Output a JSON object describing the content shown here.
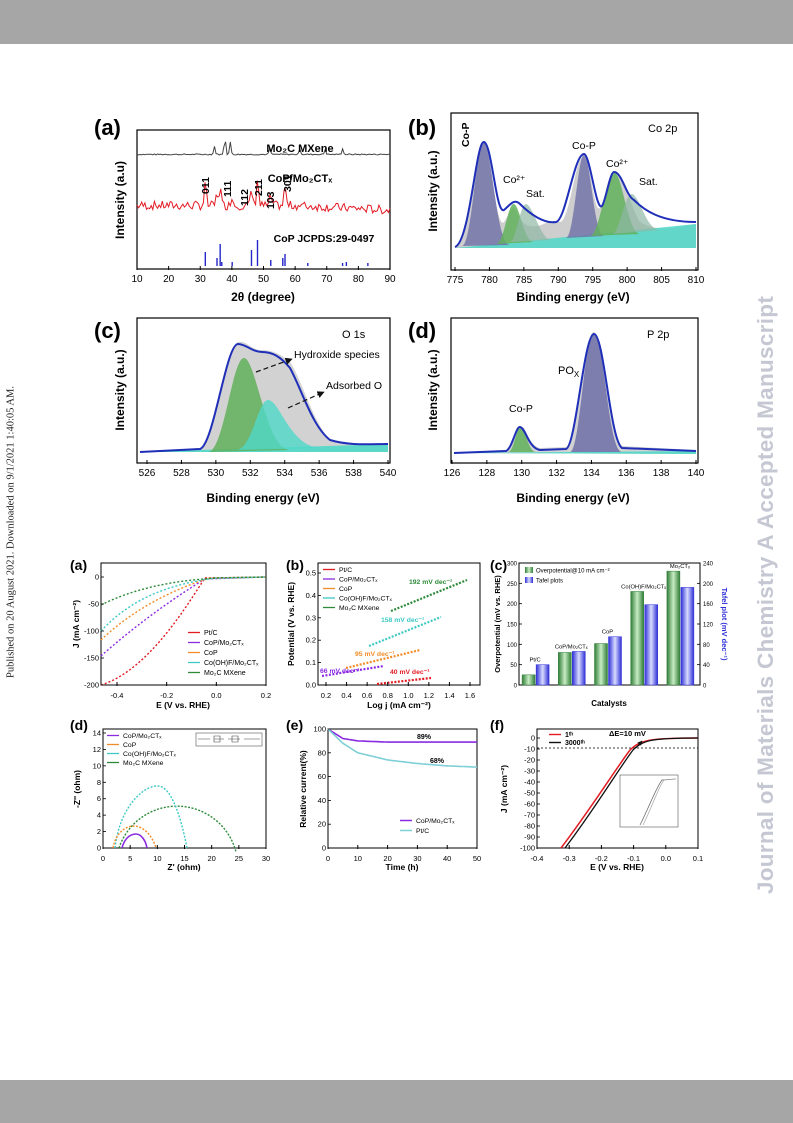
{
  "side_note": "Published on 20 August 2021. Downloaded on 9/1/2021 1:40:05 AM.",
  "watermark": "Journal of Materials Chemistry A Accepted Manuscript",
  "colors": {
    "band": "#a6a6a6",
    "watermark": "#c5c8d3",
    "red": "#e31b23",
    "blue": "#1f2fb8",
    "green": "#52a84a",
    "teal": "#3ec9c5",
    "purple": "#8a2be2",
    "orange": "#f28c28",
    "darkgreen": "#2e8b3a"
  },
  "fig1": {
    "a": {
      "label": "(a)",
      "ylabel": "Intensity (a.u)",
      "xlabel": "2θ (degree)",
      "xticks": [
        "10",
        "20",
        "30",
        "40",
        "50",
        "60",
        "70",
        "80",
        "90"
      ],
      "trace1": "Mo₂C MXene",
      "trace2": "CoP/Mo₂CTₓ",
      "ref": "CoP JCPDS:29-0497",
      "peaks": [
        "011",
        "111",
        "112",
        "211",
        "103",
        "301"
      ]
    },
    "b": {
      "label": "(b)",
      "title": "Co 2p",
      "ylabel": "Intensity (a.u.)",
      "xlabel": "Binding energy (eV)",
      "xticks": [
        "775",
        "780",
        "785",
        "790",
        "795",
        "800",
        "805",
        "810"
      ],
      "annotations": [
        "Co-P",
        "Co²⁺",
        "Sat.",
        "Co-P",
        "Co²⁺",
        "Sat."
      ]
    },
    "c": {
      "label": "(c)",
      "title": "O 1s",
      "ylabel": "Intensity (a.u.)",
      "xlabel": "Binding energy (eV)",
      "xticks": [
        "526",
        "528",
        "530",
        "532",
        "534",
        "536",
        "538",
        "540"
      ],
      "annotations": [
        "Hydroxide species",
        "Adsorbed O"
      ]
    },
    "d": {
      "label": "(d)",
      "title": "P 2p",
      "ylabel": "Intensity (a.u.)",
      "xlabel": "Binding energy (eV)",
      "xticks": [
        "126",
        "128",
        "130",
        "132",
        "134",
        "136",
        "138",
        "140"
      ],
      "annotations": [
        "PO",
        "X",
        "Co-P"
      ]
    }
  },
  "fig2": {
    "a": {
      "label": "(a)",
      "ylabel": "J (mA cm⁻²)",
      "xlabel": "E (V vs. RHE)",
      "xticks": [
        "-0.4",
        "-0.2",
        "0.0",
        "0.2"
      ],
      "yticks": [
        "0",
        "-50",
        "-100",
        "-150",
        "-200"
      ],
      "legend": [
        "Pt/C",
        "CoP/Mo₂CTₓ",
        "CoP",
        "Co(OH)F/Mo₂CTₓ",
        "Mo₂C MXene"
      ]
    },
    "b": {
      "label": "(b)",
      "ylabel": "Potential (V vs. RHE)",
      "xlabel": "Log j (mA cm⁻²)",
      "xticks": [
        "0.2",
        "0.4",
        "0.6",
        "0.8",
        "1.0",
        "1.2",
        "1.4",
        "1.6"
      ],
      "yticks": [
        "0.0",
        "0.1",
        "0.2",
        "0.3",
        "0.4",
        "0.5"
      ],
      "legend": [
        "Pt/C",
        "CoP/Mo₂CTₓ",
        "CoP",
        "Co(OH)F/Mo₂CTₓ",
        "Mo₂C MXene"
      ],
      "slopes": [
        "192 mV dec⁻¹",
        "158 mV dec⁻¹",
        "95 mV dec⁻¹",
        "66 mV dec⁻¹",
        "40 mV dec⁻¹"
      ]
    },
    "c": {
      "label": "(c)",
      "ylabel": "Overpotential (mV vs. RHE)",
      "y2label": "Tafel plot (mV dec⁻¹)",
      "xlabel": "Catalysts",
      "legend": [
        "Overpotential@10 mA cm⁻²",
        "Tafel plots"
      ],
      "yticks": [
        "0",
        "50",
        "100",
        "150",
        "200",
        "250",
        "300"
      ],
      "y2ticks": [
        "0",
        "40",
        "80",
        "120",
        "160",
        "200",
        "240"
      ],
      "categories": [
        "Pt/C",
        "CoP/Mo₂CTₓ",
        "CoP",
        "Co(OH)F/Mo₂CTₓ",
        "Mo₂CTₓ"
      ]
    },
    "d": {
      "label": "(d)",
      "ylabel": "-Z'' (ohm)",
      "xlabel": "Z' (ohm)",
      "xticks": [
        "0",
        "5",
        "10",
        "15",
        "20",
        "25",
        "30"
      ],
      "yticks": [
        "0",
        "2",
        "4",
        "6",
        "8",
        "10",
        "12",
        "14"
      ],
      "legend": [
        "CoP/Mo₂CTₓ",
        "CoP",
        "Co(OH)F/Mo₂CTₓ",
        "Mo₂C MXene"
      ]
    },
    "e": {
      "label": "(e)",
      "ylabel": "Relative current(%)",
      "xlabel": "Time (h)",
      "xticks": [
        "0",
        "10",
        "20",
        "30",
        "40",
        "50"
      ],
      "yticks": [
        "0",
        "20",
        "40",
        "60",
        "80",
        "100"
      ],
      "legend": [
        "CoP/Mo₂CTₓ",
        "Pt/C"
      ],
      "retention": [
        "89%",
        "68%"
      ]
    },
    "f": {
      "label": "(f)",
      "ylabel": "J (mA cm⁻²)",
      "xlabel": "E (V vs. RHE)",
      "xticks": [
        "-0.4",
        "-0.3",
        "-0.2",
        "-0.1",
        "0.0",
        "0.1"
      ],
      "yticks": [
        "0",
        "-10",
        "-20",
        "-30",
        "-40",
        "-50",
        "-60",
        "-70",
        "-80",
        "-90",
        "-100"
      ],
      "legend": [
        "1ᵗʰ",
        "3000ᵗʰ"
      ],
      "delta": "ΔE=10 mV"
    }
  },
  "chart_data": [
    {
      "type": "bar",
      "title": "",
      "xlabel": "Catalysts",
      "ylabel": "Overpotential (mV vs. RHE)",
      "categories": [
        "Pt/C",
        "CoP/Mo₂CTₓ",
        "CoP",
        "Co(OH)F/Mo₂CTₓ",
        "Mo₂CTₓ"
      ],
      "series": [
        {
          "name": "Overpotential@10 mA cm⁻²",
          "values": [
            25,
            80,
            102,
            230,
            280
          ]
        },
        {
          "name": "Tafel plots",
          "values": [
            40,
            66,
            95,
            158,
            192
          ]
        }
      ],
      "ylim": [
        0,
        300
      ],
      "y2lim": [
        0,
        240
      ]
    },
    {
      "type": "line",
      "title": "",
      "xlabel": "Time (h)",
      "ylabel": "Relative current(%)",
      "x": [
        0,
        5,
        10,
        20,
        30,
        40,
        50
      ],
      "series": [
        {
          "name": "CoP/Mo₂CTₓ",
          "values": [
            100,
            92,
            90,
            89,
            89,
            89,
            89
          ]
        },
        {
          "name": "Pt/C",
          "values": [
            100,
            88,
            80,
            74,
            71,
            69,
            68
          ]
        }
      ],
      "ylim": [
        0,
        100
      ]
    }
  ]
}
